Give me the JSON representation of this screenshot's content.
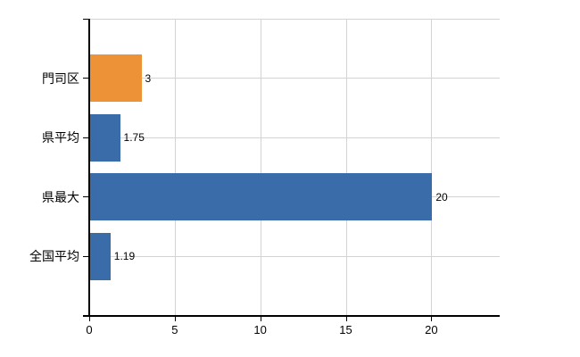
{
  "chart_data": {
    "type": "bar",
    "orientation": "horizontal",
    "title": "",
    "categories": [
      "門司区",
      "県平均",
      "県最大",
      "全国平均"
    ],
    "values": [
      3,
      1.75,
      20,
      1.19
    ],
    "value_labels": [
      "3",
      "1.75",
      "20",
      "1.19"
    ],
    "bar_colors": [
      "#ED9236",
      "#3A6CA9",
      "#3A6CA9",
      "#3A6CA9"
    ],
    "x_ticks": [
      0,
      5,
      10,
      15,
      20
    ],
    "x_tick_labels": [
      "0",
      "5",
      "10",
      "15",
      "20"
    ],
    "xlim": [
      0,
      24
    ],
    "grid": true,
    "legend": false,
    "colors": {
      "bar_highlight": "#ED9236",
      "bar_default": "#3A6CA9",
      "gridline": "#D3D3D3",
      "axis": "#000000",
      "text": "#000000",
      "background": "#FFFFFF"
    }
  }
}
